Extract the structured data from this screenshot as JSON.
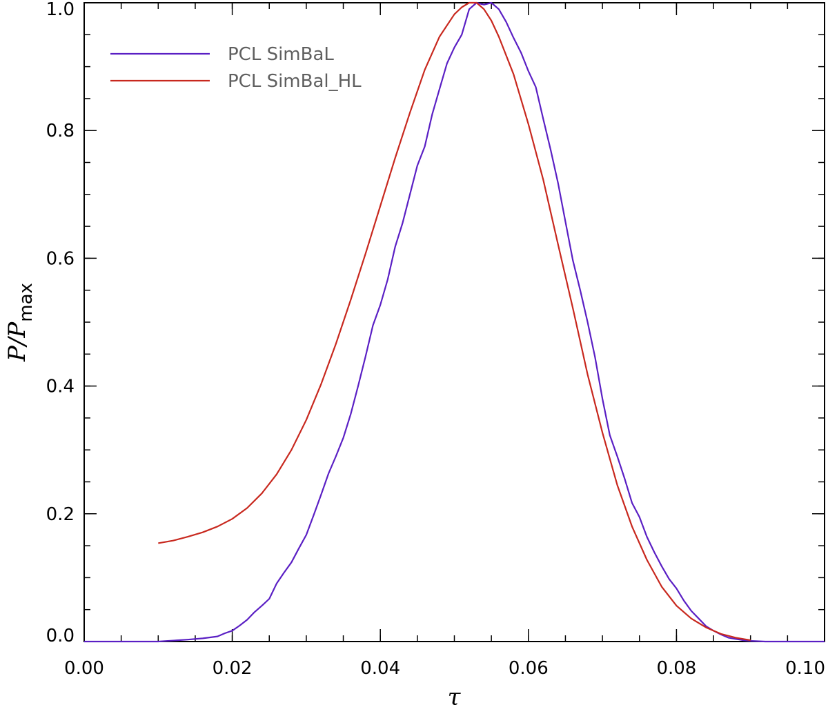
{
  "chart_data": {
    "type": "line",
    "title": "",
    "xlabel": "τ",
    "ylabel": {
      "main": "P/P",
      "subscript": "max"
    },
    "xlim": [
      0.0,
      0.1
    ],
    "ylim": [
      0.0,
      1.0
    ],
    "x_ticks": [
      0.0,
      0.02,
      0.04,
      0.06,
      0.08,
      0.1
    ],
    "x_tick_labels": [
      "0.00",
      "0.02",
      "0.04",
      "0.06",
      "0.08",
      "0.10"
    ],
    "y_ticks": [
      0.0,
      0.2,
      0.4,
      0.6,
      0.8,
      1.0
    ],
    "y_tick_labels": [
      "0.0",
      "0.2",
      "0.4",
      "0.6",
      "0.8",
      "1.0"
    ],
    "x_minor_step": 0.005,
    "y_minor_step": 0.05,
    "grid": false,
    "legend_position": "top-left",
    "series": [
      {
        "name": "PCL SimBaL",
        "color": "#5a1fc4",
        "x": [
          0.0,
          0.01,
          0.014,
          0.016,
          0.018,
          0.019,
          0.02,
          0.021,
          0.022,
          0.023,
          0.024,
          0.025,
          0.026,
          0.027,
          0.028,
          0.029,
          0.03,
          0.031,
          0.032,
          0.033,
          0.034,
          0.035,
          0.036,
          0.037,
          0.038,
          0.039,
          0.04,
          0.041,
          0.042,
          0.043,
          0.044,
          0.045,
          0.046,
          0.047,
          0.048,
          0.049,
          0.05,
          0.051,
          0.052,
          0.053,
          0.054,
          0.055,
          0.056,
          0.057,
          0.058,
          0.059,
          0.06,
          0.061,
          0.062,
          0.063,
          0.064,
          0.065,
          0.066,
          0.067,
          0.068,
          0.069,
          0.07,
          0.071,
          0.072,
          0.073,
          0.074,
          0.075,
          0.076,
          0.077,
          0.078,
          0.079,
          0.08,
          0.081,
          0.082,
          0.083,
          0.084,
          0.085,
          0.086,
          0.087,
          0.088,
          0.089,
          0.09,
          0.092,
          0.095,
          0.1
        ],
        "y": [
          0.0,
          0.0,
          0.003,
          0.005,
          0.008,
          0.013,
          0.017,
          0.025,
          0.034,
          0.046,
          0.056,
          0.067,
          0.091,
          0.108,
          0.124,
          0.146,
          0.167,
          0.198,
          0.23,
          0.263,
          0.29,
          0.319,
          0.356,
          0.4,
          0.446,
          0.495,
          0.527,
          0.567,
          0.618,
          0.655,
          0.7,
          0.745,
          0.775,
          0.825,
          0.865,
          0.905,
          0.93,
          0.95,
          0.99,
          1.0,
          0.997,
          1.0,
          0.99,
          0.97,
          0.945,
          0.922,
          0.893,
          0.868,
          0.818,
          0.77,
          0.718,
          0.657,
          0.597,
          0.55,
          0.5,
          0.445,
          0.38,
          0.323,
          0.29,
          0.255,
          0.217,
          0.195,
          0.164,
          0.14,
          0.118,
          0.098,
          0.083,
          0.064,
          0.048,
          0.036,
          0.024,
          0.017,
          0.011,
          0.006,
          0.004,
          0.002,
          0.001,
          0.0,
          0.0,
          0.0
        ]
      },
      {
        "name": "PCL SimBal_HL",
        "color": "#c8281e",
        "x": [
          0.01,
          0.012,
          0.014,
          0.016,
          0.018,
          0.02,
          0.022,
          0.024,
          0.026,
          0.028,
          0.03,
          0.032,
          0.034,
          0.036,
          0.038,
          0.04,
          0.042,
          0.044,
          0.046,
          0.048,
          0.05,
          0.051,
          0.052,
          0.053,
          0.054,
          0.055,
          0.056,
          0.058,
          0.06,
          0.062,
          0.064,
          0.066,
          0.068,
          0.07,
          0.072,
          0.074,
          0.076,
          0.078,
          0.08,
          0.082,
          0.084,
          0.086,
          0.088,
          0.09
        ],
        "y": [
          0.154,
          0.158,
          0.164,
          0.171,
          0.18,
          0.192,
          0.209,
          0.232,
          0.262,
          0.3,
          0.347,
          0.403,
          0.466,
          0.535,
          0.607,
          0.682,
          0.757,
          0.828,
          0.895,
          0.947,
          0.982,
          0.993,
          1.0,
          1.0,
          0.99,
          0.972,
          0.947,
          0.888,
          0.81,
          0.723,
          0.622,
          0.522,
          0.418,
          0.327,
          0.245,
          0.18,
          0.128,
          0.086,
          0.056,
          0.036,
          0.022,
          0.012,
          0.006,
          0.002
        ]
      }
    ]
  }
}
